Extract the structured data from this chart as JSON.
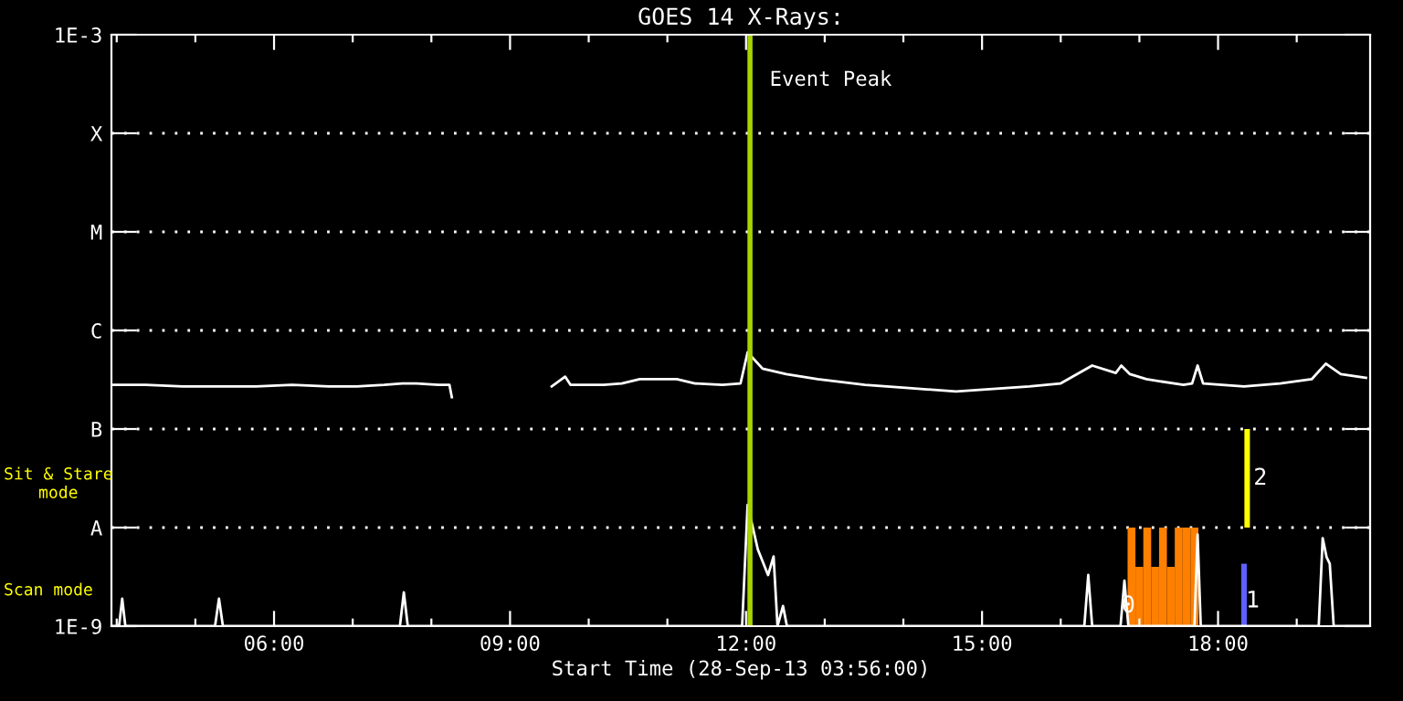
{
  "chart_data": {
    "type": "line",
    "title": "GOES 14 X-Rays:",
    "xlabel": "Start Time (28-Sep-13 03:56:00)",
    "log": "y",
    "grid": "y",
    "legend": false,
    "marker": "none",
    "line_style": "solid",
    "xlim": [
      3.933,
      19.933
    ],
    "ylim": [
      1e-09,
      0.001
    ],
    "xticks": [
      {
        "value": 4,
        "label": null
      },
      {
        "value": 5,
        "label": null
      },
      {
        "value": 6,
        "label": "06:00"
      },
      {
        "value": 7,
        "label": null
      },
      {
        "value": 8,
        "label": null
      },
      {
        "value": 9,
        "label": "09:00"
      },
      {
        "value": 10,
        "label": null
      },
      {
        "value": 11,
        "label": null
      },
      {
        "value": 12,
        "label": "12:00"
      },
      {
        "value": 13,
        "label": null
      },
      {
        "value": 14,
        "label": null
      },
      {
        "value": 15,
        "label": "15:00"
      },
      {
        "value": 16,
        "label": null
      },
      {
        "value": 17,
        "label": null
      },
      {
        "value": 18,
        "label": "18:00"
      },
      {
        "value": 19,
        "label": null
      }
    ],
    "yticks": [
      {
        "value": 1e-09,
        "label": "1E-9"
      },
      {
        "value": 1e-08,
        "label": "A"
      },
      {
        "value": 1e-07,
        "label": "B"
      },
      {
        "value": 1e-06,
        "label": "C"
      },
      {
        "value": 1e-05,
        "label": "M"
      },
      {
        "value": 0.0001,
        "label": "X"
      },
      {
        "value": 0.001,
        "label": "1E-3"
      }
    ],
    "series": [
      {
        "color": "#ffffff",
        "x": [
          3.94,
          4.37,
          4.84,
          5.3,
          5.77,
          6.23,
          6.7,
          7.05,
          7.4,
          7.63,
          7.81,
          8.09,
          8.23,
          8.26,
          8.9,
          9.53,
          9.7,
          9.77,
          10.19,
          10.42,
          10.65,
          11.12,
          11.35,
          11.7,
          11.93,
          12.02,
          12.21,
          12.51,
          12.91,
          13.51,
          14.07,
          14.67,
          15.6,
          16.0,
          16.4,
          16.7,
          16.77,
          16.88,
          17.09,
          17.56,
          17.67,
          17.74,
          17.81,
          18.33,
          18.79,
          19.19,
          19.37,
          19.56,
          19.88
        ],
        "values": [
          2.8e-07,
          2.8e-07,
          2.7e-07,
          2.7e-07,
          2.7e-07,
          2.8e-07,
          2.7e-07,
          2.7e-07,
          2.8e-07,
          2.9e-07,
          2.9e-07,
          2.8e-07,
          2.8e-07,
          2.1e-07,
          null,
          2.7e-07,
          3.4e-07,
          2.8e-07,
          2.8e-07,
          2.9e-07,
          3.2e-07,
          3.2e-07,
          2.9e-07,
          2.8e-07,
          2.9e-07,
          6e-07,
          4.1e-07,
          3.6e-07,
          3.2e-07,
          2.8e-07,
          2.6e-07,
          2.4e-07,
          2.7e-07,
          2.9e-07,
          4.4e-07,
          3.7e-07,
          4.4e-07,
          3.6e-07,
          3.2e-07,
          2.8e-07,
          2.9e-07,
          4.4e-07,
          2.9e-07,
          2.7e-07,
          2.9e-07,
          3.2e-07,
          4.6e-07,
          3.6e-07,
          3.3e-07
        ]
      },
      {
        "color": "#ffffff",
        "x": [
          3.95,
          4.03,
          4.07,
          4.11,
          5.25,
          5.3,
          5.35,
          7.6,
          7.65,
          7.7,
          11.95,
          12.02,
          12.15,
          12.28,
          12.35,
          12.4,
          12.47,
          12.52,
          16.3,
          16.35,
          16.4,
          16.76,
          16.81,
          16.86,
          17.7,
          17.74,
          17.78,
          19.28,
          19.33,
          19.38,
          19.42,
          19.47,
          19.93
        ],
        "values": [
          1e-09,
          1e-09,
          1.9e-09,
          1e-09,
          1e-09,
          1.9e-09,
          1e-09,
          1e-09,
          2.2e-09,
          1e-09,
          1e-09,
          1.7e-08,
          6e-09,
          3.3e-09,
          5.1e-09,
          1e-09,
          1.6e-09,
          1e-09,
          1e-09,
          3.3e-09,
          1e-09,
          1e-09,
          2.9e-09,
          1e-09,
          1e-09,
          8.5e-09,
          1e-09,
          1e-09,
          7.8e-09,
          5e-09,
          4.3e-09,
          1e-09,
          1e-09
        ]
      },
      {
        "type": "bar",
        "color": "#ff8000",
        "x": [
          16.9,
          17.0,
          17.1,
          17.2,
          17.3,
          17.4,
          17.5,
          17.6,
          17.7
        ],
        "base": [
          1e-09,
          1e-09,
          1e-09,
          1e-09,
          1e-09,
          1e-09,
          1e-09,
          1e-09,
          1e-09
        ],
        "values": [
          9e-09,
          3e-09,
          9e-09,
          3e-09,
          9e-09,
          3e-09,
          9e-09,
          9e-09,
          9e-09
        ]
      },
      {
        "type": "bar",
        "color": "#ffff00",
        "x": [
          18.37
        ],
        "base": [
          1e-08
        ],
        "values": [
          9e-08
        ]
      },
      {
        "type": "bar",
        "color": "#6060ff",
        "x": [
          18.33
        ],
        "base": [
          1e-09
        ],
        "values": [
          3.3e-09
        ]
      }
    ],
    "ref_lines": [
      {
        "axis": "x",
        "value": 12.05,
        "label": "Event Peak",
        "color": "#a8d400"
      }
    ],
    "annotations": [
      "Sit & Stare\nmode",
      "Scan mode",
      {
        "text": "0",
        "x": 16.86,
        "y": 1.6e-09
      },
      {
        "text": "1",
        "x": 18.44,
        "y": 1.8e-09
      },
      "2"
    ]
  }
}
